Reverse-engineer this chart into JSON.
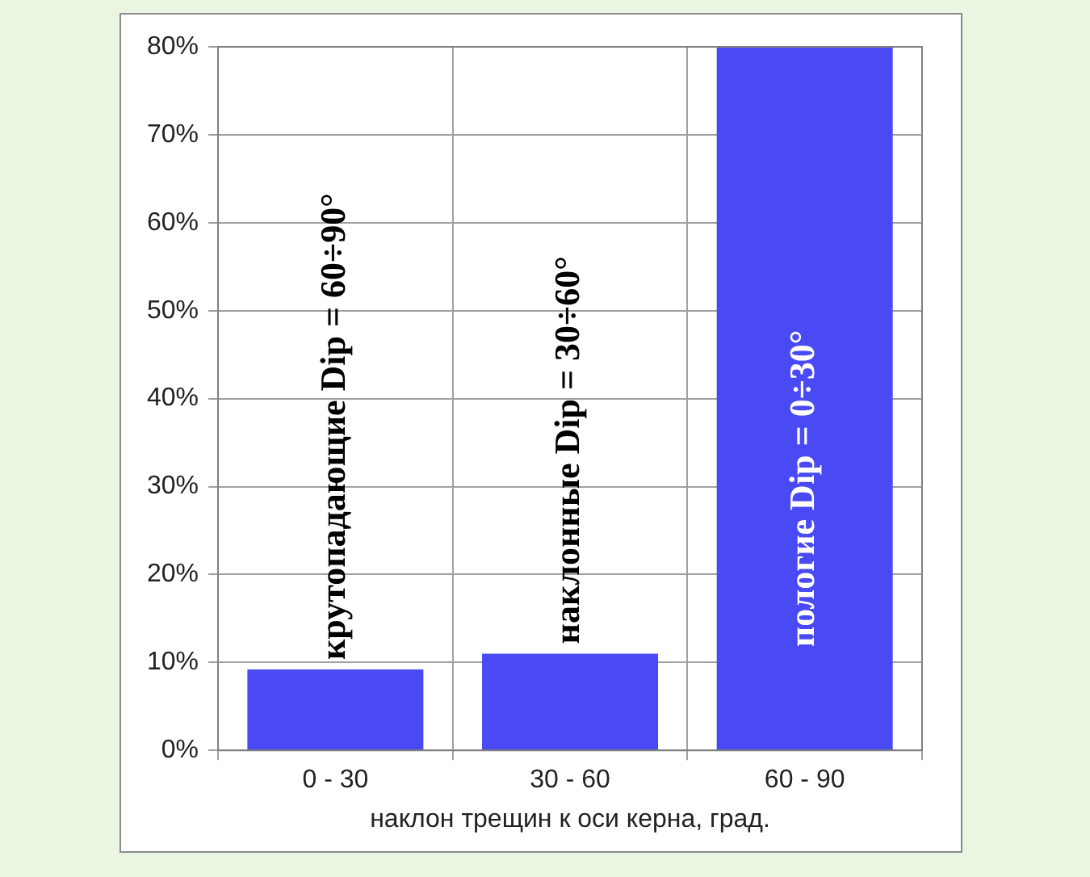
{
  "chart_data": {
    "type": "bar",
    "categories": [
      "0 - 30",
      "30 - 60",
      "60 - 90"
    ],
    "values": [
      9.2,
      11,
      80
    ],
    "color": "#4a4af5",
    "ylim": [
      0,
      80
    ],
    "yticks": [
      {
        "value": 0,
        "label": "0%"
      },
      {
        "value": 10,
        "label": "10%"
      },
      {
        "value": 20,
        "label": "20%"
      },
      {
        "value": 30,
        "label": "30%"
      },
      {
        "value": 40,
        "label": "40%"
      },
      {
        "value": 50,
        "label": "50%"
      },
      {
        "value": 60,
        "label": "60%"
      },
      {
        "value": 70,
        "label": "70%"
      },
      {
        "value": 80,
        "label": "80%"
      }
    ],
    "xlabel": "наклон трещин к оси керна, град.",
    "annotations": [
      "крутопадающие Dip = 60÷90°",
      "наклонные Dip = 30÷60°",
      "пологие Dip = 0÷30°"
    ],
    "grid": true,
    "legend": false
  }
}
